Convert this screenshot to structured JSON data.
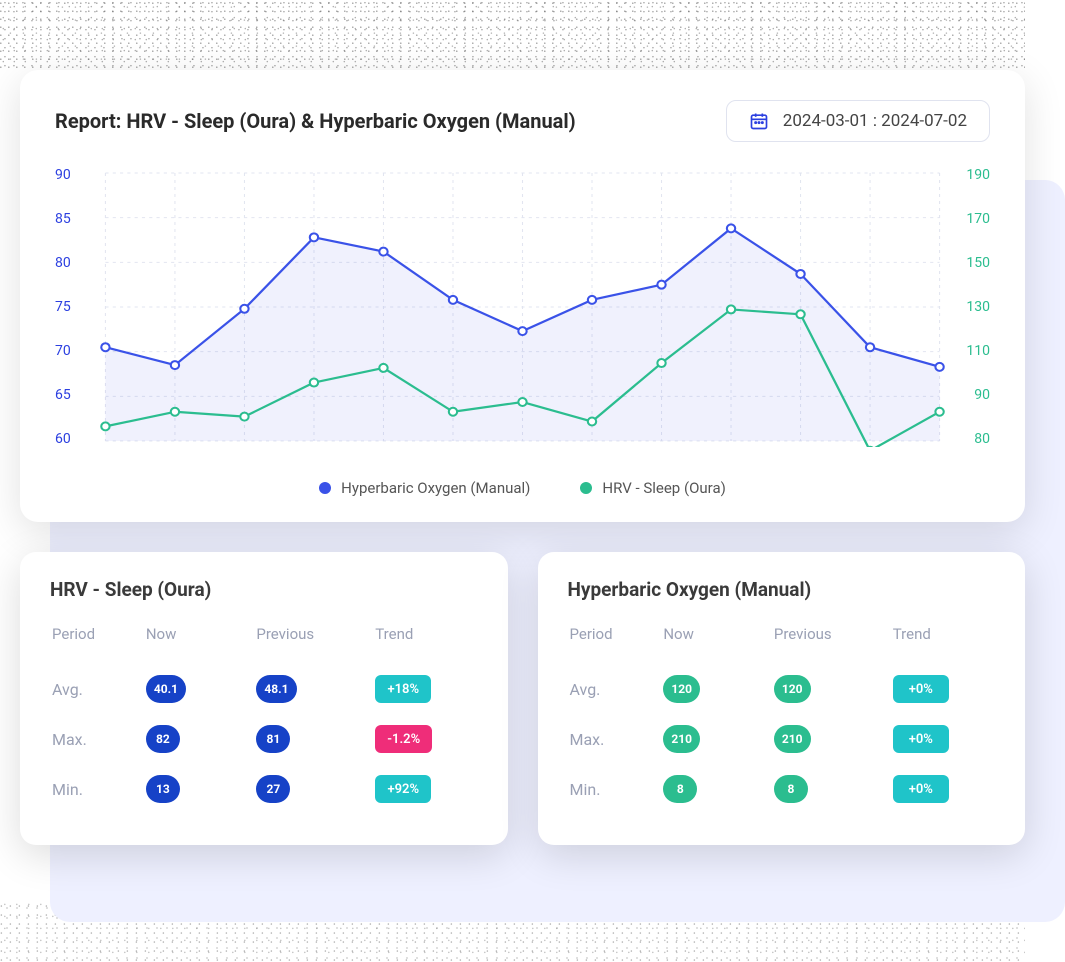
{
  "chart": {
    "title": "Report: HRV - Sleep (Oura) & Hyperbaric Oxygen (Manual)",
    "date_range": "2024-03-01 : 2024-07-02",
    "left_axis": {
      "ticks": [
        90,
        85,
        80,
        75,
        70,
        65,
        60
      ],
      "min": 60,
      "max": 90,
      "color": "#2b3fe0"
    },
    "right_axis": {
      "ticks": [
        190,
        170,
        150,
        130,
        110,
        90,
        80
      ],
      "min": 80,
      "max": 190,
      "color": "#2bbd8f"
    },
    "grid_color": "#e2e5f0",
    "background_color": "#ffffff",
    "series": [
      {
        "name": "Hyperbaric Oxygen (Manual)",
        "axis": "left",
        "color": "#3a52e8",
        "fill": "rgba(58,82,232,0.08)",
        "marker": {
          "shape": "circle",
          "fill": "#ffffff",
          "stroke": "#3a52e8",
          "r": 4,
          "stroke_width": 2
        },
        "line_width": 2.2,
        "values": [
          70.5,
          68.5,
          74.8,
          82.8,
          81.2,
          75.8,
          72.3,
          75.8,
          77.5,
          83.8,
          78.7,
          70.5,
          68.3
        ]
      },
      {
        "name": "HRV - Sleep (Oura)",
        "axis": "right",
        "color": "#2bbd8f",
        "fill": "none",
        "marker": {
          "shape": "circle",
          "fill": "#ffffff",
          "stroke": "#2bbd8f",
          "r": 4,
          "stroke_width": 2
        },
        "line_width": 2.2,
        "values": [
          86,
          92,
          90,
          104,
          110,
          92,
          96,
          88,
          112,
          134,
          132,
          76,
          92
        ]
      }
    ],
    "legend": [
      {
        "label": "Hyperbaric Oxygen (Manual)",
        "color": "#3a52e8"
      },
      {
        "label": "HRV - Sleep (Oura)",
        "color": "#2bbd8f"
      }
    ],
    "x_count": 13
  },
  "stats": {
    "headers": {
      "period": "Period",
      "now": "Now",
      "previous": "Previous",
      "trend": "Trend"
    },
    "row_labels": {
      "avg": "Avg.",
      "max": "Max.",
      "min": "Min."
    },
    "cards": [
      {
        "title": "HRV - Sleep (Oura)",
        "chip_color": "#1642c7",
        "chip_class": "chip-blue",
        "rows": [
          {
            "label_key": "avg",
            "now": "40.1",
            "previous": "48.1",
            "trend": "+18%",
            "trend_class": "trend-teal"
          },
          {
            "label_key": "max",
            "now": "82",
            "previous": "81",
            "trend": "-1.2%",
            "trend_class": "trend-pink"
          },
          {
            "label_key": "min",
            "now": "13",
            "previous": "27",
            "trend": "+92%",
            "trend_class": "trend-teal"
          }
        ]
      },
      {
        "title": "Hyperbaric Oxygen (Manual)",
        "chip_color": "#2bbd8f",
        "chip_class": "chip-green",
        "rows": [
          {
            "label_key": "avg",
            "now": "120",
            "previous": "120",
            "trend": "+0%",
            "trend_class": "trend-teal"
          },
          {
            "label_key": "max",
            "now": "210",
            "previous": "210",
            "trend": "+0%",
            "trend_class": "trend-teal"
          },
          {
            "label_key": "min",
            "now": "8",
            "previous": "8",
            "trend": "+0%",
            "trend_class": "trend-teal"
          }
        ]
      }
    ]
  }
}
